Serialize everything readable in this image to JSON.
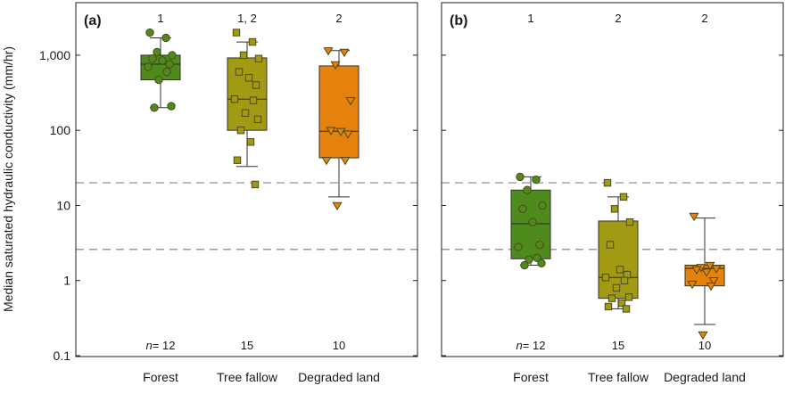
{
  "chart_data": {
    "type": "box",
    "ylabel": "Median saturated hydraulic conductivity (mm/hr)",
    "yscale": "log",
    "ylim": [
      0.1,
      5000
    ],
    "yticks": [
      {
        "value": 0.1,
        "label": "0.1"
      },
      {
        "value": 1,
        "label": "1"
      },
      {
        "value": 10,
        "label": "10"
      },
      {
        "value": 100,
        "label": "100"
      },
      {
        "value": 1000,
        "label": "1,000"
      }
    ],
    "categories": [
      "Forest",
      "Tree fallow",
      "Degraded land"
    ],
    "colors": {
      "Forest": "#4f8a1c",
      "Tree fallow": "#a39a14",
      "Degraded land": "#e5820e"
    },
    "marker_shapes": {
      "Forest": "circle",
      "Tree fallow": "square",
      "Degraded land": "triangle-down"
    },
    "reference_lines": [
      20,
      2.6
    ],
    "panels": [
      {
        "label": "(a)",
        "n_prefix": "n",
        "n_values": [
          "12",
          "15",
          "10"
        ],
        "letters": [
          "1",
          "1, 2",
          "2"
        ],
        "boxes": [
          {
            "category": "Forest",
            "q1": 470,
            "median": 760,
            "q3": 1000,
            "whisker_low": 200,
            "whisker_high": 1700,
            "points": [
              2000,
              1700,
              1100,
              1000,
              900,
              850,
              760,
              700,
              600,
              470,
              210,
              200
            ]
          },
          {
            "category": "Tree fallow",
            "q1": 100,
            "median": 260,
            "q3": 920,
            "whisker_low": 33,
            "whisker_high": 1500,
            "points": [
              2000,
              1500,
              1000,
              900,
              600,
              500,
              400,
              260,
              250,
              170,
              140,
              100,
              70,
              40,
              19
            ]
          },
          {
            "category": "Degraded land",
            "q1": 43,
            "median": 97,
            "q3": 720,
            "whisker_low": 13,
            "whisker_high": 1150,
            "points": [
              1150,
              1100,
              750,
              250,
              100,
              97,
              90,
              40,
              40,
              10
            ]
          }
        ]
      },
      {
        "label": "(b)",
        "n_prefix": "n",
        "n_values": [
          "12",
          "15",
          "10"
        ],
        "letters": [
          "1",
          "2",
          "2"
        ],
        "boxes": [
          {
            "category": "Forest",
            "q1": 1.95,
            "median": 5.7,
            "q3": 16,
            "whisker_low": 1.6,
            "whisker_high": 24,
            "points": [
              24,
              22,
              16,
              10,
              9,
              6,
              3,
              2.8,
              2,
              1.9,
              1.7,
              1.6
            ]
          },
          {
            "category": "Tree fallow",
            "q1": 0.58,
            "median": 1.1,
            "q3": 6.2,
            "whisker_low": 0.42,
            "whisker_high": 13,
            "points": [
              20,
              13,
              9,
              6,
              3,
              1.4,
              1.2,
              1.1,
              1.0,
              0.8,
              0.6,
              0.58,
              0.5,
              0.45,
              0.42
            ]
          },
          {
            "category": "Degraded land",
            "q1": 0.85,
            "median": 1.45,
            "q3": 1.6,
            "whisker_low": 0.26,
            "whisker_high": 6.8,
            "points": [
              7.2,
              1.6,
              1.5,
              1.45,
              1.4,
              1.3,
              1.0,
              0.9,
              0.85,
              0.19
            ]
          }
        ]
      }
    ]
  }
}
